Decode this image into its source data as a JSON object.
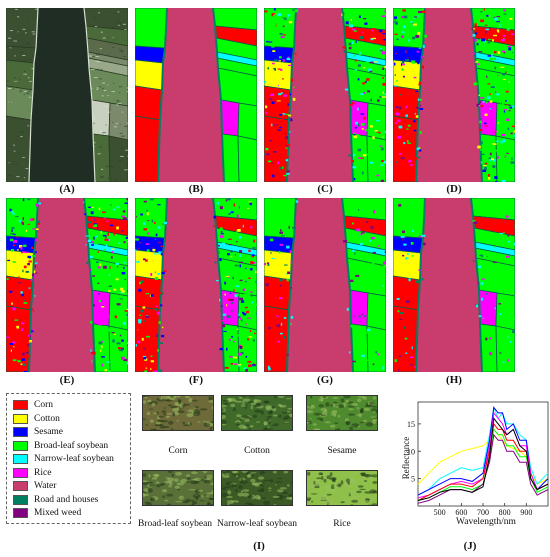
{
  "panels": [
    {
      "id": "A",
      "caption": "(A)",
      "kind": "rgb"
    },
    {
      "id": "B",
      "caption": "(B)",
      "kind": "truth"
    },
    {
      "id": "C",
      "caption": "(C)",
      "kind": "noisy"
    },
    {
      "id": "D",
      "caption": "(D)",
      "kind": "noisy"
    },
    {
      "id": "E",
      "caption": "(E)",
      "kind": "noisy"
    },
    {
      "id": "F",
      "caption": "(F)",
      "kind": "noisy"
    },
    {
      "id": "G",
      "caption": "(G)",
      "kind": "clean"
    },
    {
      "id": "H",
      "caption": "(H)",
      "kind": "clean"
    }
  ],
  "legend": [
    {
      "label": "Corn",
      "color": "#ff0000"
    },
    {
      "label": "Cotton",
      "color": "#ffff00"
    },
    {
      "label": "Sesame",
      "color": "#0000ff"
    },
    {
      "label": "Broad-leaf soybean",
      "color": "#00ff00"
    },
    {
      "label": "Narrow-leaf soybean",
      "color": "#00ffff"
    },
    {
      "label": "Rice",
      "color": "#ff00ff"
    },
    {
      "label": "Water",
      "color": "#c83c6e"
    },
    {
      "label": "Road and houses",
      "color": "#008060"
    },
    {
      "label": "Mixed weed",
      "color": "#800080"
    }
  ],
  "photos": [
    {
      "label": "Corn",
      "color": "#6f6a3a"
    },
    {
      "label": "Cotton",
      "color": "#3f6a2a"
    },
    {
      "label": "Sesame",
      "color": "#4f8a2f"
    },
    {
      "label": "Broad-leaf soybean",
      "color": "#5a7038"
    },
    {
      "label": "Narrow-leaf soybean",
      "color": "#3a5a26"
    },
    {
      "label": "Rice",
      "color": "#8fc04a"
    }
  ],
  "captions": {
    "I": "(I)",
    "J": "(J)"
  },
  "chart_data": {
    "type": "line",
    "xlabel": "Wavelength/nm",
    "ylabel": "Reflectance",
    "xticks": [
      500,
      600,
      700,
      800,
      900
    ],
    "yticks": [
      5,
      10,
      15
    ],
    "xlim": [
      400,
      1000
    ],
    "ylim": [
      0,
      19
    ],
    "x": [
      400,
      450,
      500,
      550,
      600,
      650,
      700,
      730,
      750,
      770,
      790,
      810,
      840,
      870,
      900,
      920,
      950,
      1000
    ],
    "series": [
      {
        "color": "#ffff00",
        "values": [
          4,
          6,
          8,
          9,
          10,
          10.5,
          11,
          12,
          14,
          13,
          12,
          11,
          10.5,
          10,
          9,
          6,
          4,
          5
        ]
      },
      {
        "color": "#00ffff",
        "values": [
          2,
          3,
          5,
          6,
          7,
          6.5,
          7,
          13,
          18,
          16,
          17,
          15,
          15,
          13,
          12,
          7,
          4,
          6
        ]
      },
      {
        "color": "#0000ff",
        "values": [
          2,
          3,
          4,
          5,
          5,
          4.5,
          6,
          12,
          18,
          17,
          17,
          14,
          15,
          12,
          12,
          6,
          3,
          5
        ]
      },
      {
        "color": "#ff00ff",
        "values": [
          1.5,
          2,
          3,
          4,
          4.5,
          4,
          5,
          11,
          17,
          16,
          15,
          13,
          14,
          11,
          11,
          6,
          3,
          4
        ]
      },
      {
        "color": "#ff0000",
        "values": [
          1,
          2,
          3,
          4,
          4,
          3.5,
          5,
          10,
          15,
          14,
          14,
          12,
          12,
          10,
          10,
          5,
          3,
          4
        ]
      },
      {
        "color": "#00ff00",
        "values": [
          1,
          1.5,
          2.5,
          3.5,
          3.5,
          3,
          4,
          9,
          14,
          13,
          13,
          11,
          11,
          9,
          9,
          5,
          2.5,
          3.5
        ]
      },
      {
        "color": "#800080",
        "values": [
          0.5,
          1,
          2,
          3,
          3,
          2.5,
          4,
          8,
          13,
          12,
          12,
          10,
          10,
          8,
          8,
          4,
          2,
          3
        ]
      },
      {
        "color": "#000000",
        "values": [
          1,
          1.5,
          2.5,
          3,
          3,
          2.5,
          3.5,
          9,
          16,
          15,
          14,
          13,
          14,
          11,
          10,
          5,
          3,
          4
        ]
      }
    ]
  }
}
